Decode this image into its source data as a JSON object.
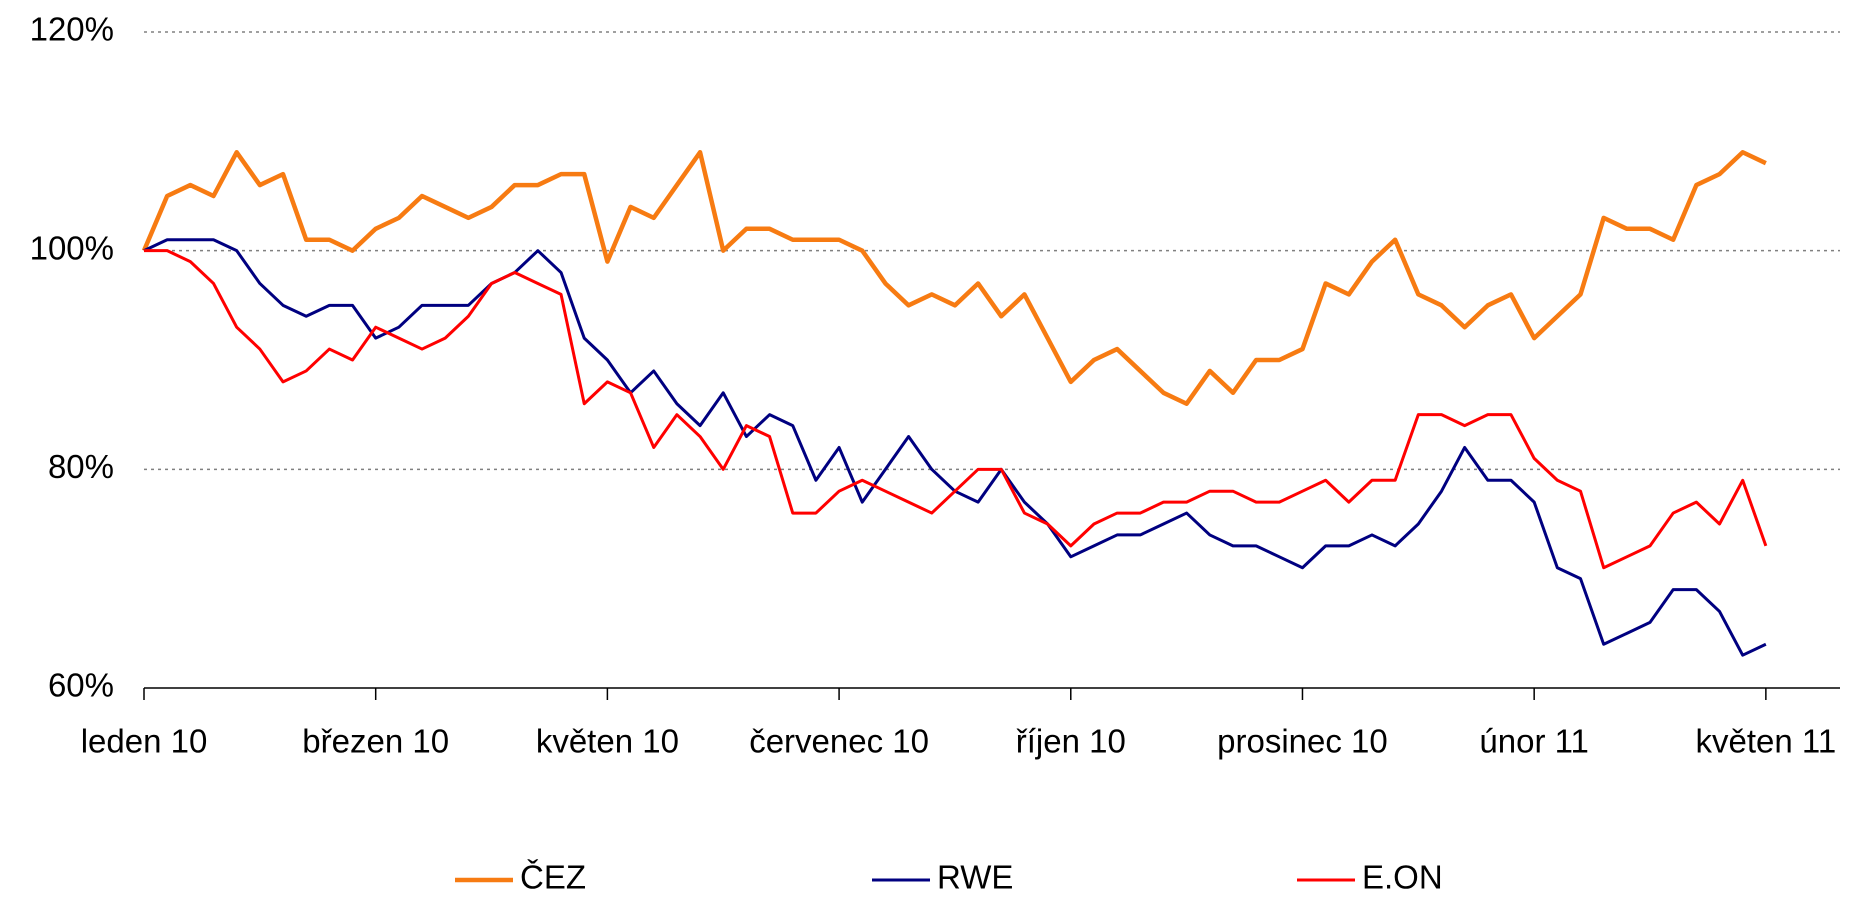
{
  "chart_data": {
    "type": "line",
    "x": [
      0,
      0.1,
      0.2,
      0.3,
      0.4,
      0.5,
      0.6,
      0.7,
      0.8,
      0.9,
      1,
      1.1,
      1.2,
      1.3,
      1.4,
      1.5,
      1.6,
      1.7,
      1.8,
      1.9,
      2,
      2.1,
      2.2,
      2.3,
      2.4,
      2.5,
      2.6,
      2.7,
      2.8,
      2.9,
      3,
      3.1,
      3.2,
      3.3,
      3.4,
      3.5,
      3.6,
      3.7,
      3.8,
      3.9,
      4,
      4.1,
      4.2,
      4.3,
      4.4,
      4.5,
      4.6,
      4.7,
      4.8,
      4.9,
      5,
      5.1,
      5.2,
      5.3,
      5.4,
      5.5,
      5.6,
      5.7,
      5.8,
      5.9,
      6,
      6.1,
      6.2,
      6.3,
      6.4,
      6.5,
      6.6,
      6.7,
      6.8,
      6.9,
      7
    ],
    "series": [
      {
        "name": "ČEZ",
        "color": "#f77b12",
        "values": [
          100,
          105,
          106,
          105,
          109,
          106,
          107,
          101,
          101,
          100,
          102,
          103,
          105,
          104,
          103,
          104,
          106,
          106,
          107,
          107,
          99,
          104,
          103,
          106,
          109,
          100,
          102,
          102,
          101,
          101,
          101,
          100,
          97,
          95,
          96,
          95,
          97,
          94,
          96,
          92,
          88,
          90,
          91,
          89,
          87,
          86,
          89,
          87,
          90,
          90,
          91,
          97,
          96,
          99,
          101,
          96,
          95,
          93,
          95,
          96,
          92,
          94,
          96,
          103,
          102,
          102,
          101,
          106,
          107,
          109,
          108
        ]
      },
      {
        "name": "RWE",
        "color": "#000080",
        "values": [
          100,
          101,
          101,
          101,
          100,
          97,
          95,
          94,
          95,
          95,
          92,
          93,
          95,
          95,
          95,
          97,
          98,
          100,
          98,
          92,
          90,
          87,
          89,
          86,
          84,
          87,
          83,
          85,
          84,
          79,
          82,
          77,
          80,
          83,
          80,
          78,
          77,
          80,
          77,
          75,
          72,
          73,
          74,
          74,
          75,
          76,
          74,
          73,
          73,
          72,
          71,
          73,
          73,
          74,
          73,
          75,
          78,
          82,
          79,
          79,
          77,
          71,
          70,
          64,
          65,
          66,
          69,
          69,
          67,
          63,
          64
        ]
      },
      {
        "name": "E.ON",
        "color": "#ff0000",
        "values": [
          100,
          100,
          99,
          97,
          93,
          91,
          88,
          89,
          91,
          90,
          93,
          92,
          91,
          92,
          94,
          97,
          98,
          97,
          96,
          86,
          88,
          87,
          82,
          85,
          83,
          80,
          84,
          83,
          76,
          76,
          78,
          79,
          78,
          77,
          76,
          78,
          80,
          80,
          76,
          75,
          73,
          75,
          76,
          76,
          77,
          77,
          78,
          78,
          77,
          77,
          78,
          79,
          77,
          79,
          79,
          85,
          85,
          84,
          85,
          85,
          81,
          79,
          78,
          71,
          72,
          73,
          76,
          77,
          75,
          79,
          73
        ]
      }
    ],
    "xlim": [
      0,
      7.32
    ],
    "xticks": [
      {
        "value": 0,
        "label": "leden 10"
      },
      {
        "value": 1,
        "label": "březen 10"
      },
      {
        "value": 2,
        "label": "květen 10"
      },
      {
        "value": 3,
        "label": "červenec 10"
      },
      {
        "value": 4,
        "label": "říjen 10"
      },
      {
        "value": 5,
        "label": "prosinec 10"
      },
      {
        "value": 6,
        "label": "únor 11"
      },
      {
        "value": 7,
        "label": "květen 11"
      }
    ],
    "ylim": [
      60,
      120
    ],
    "yticks": [
      {
        "value": 60,
        "label": "60%"
      },
      {
        "value": 80,
        "label": "80%"
      },
      {
        "value": 100,
        "label": "100%"
      },
      {
        "value": 120,
        "label": "120%"
      }
    ],
    "grid": true,
    "legend": "bottom"
  }
}
